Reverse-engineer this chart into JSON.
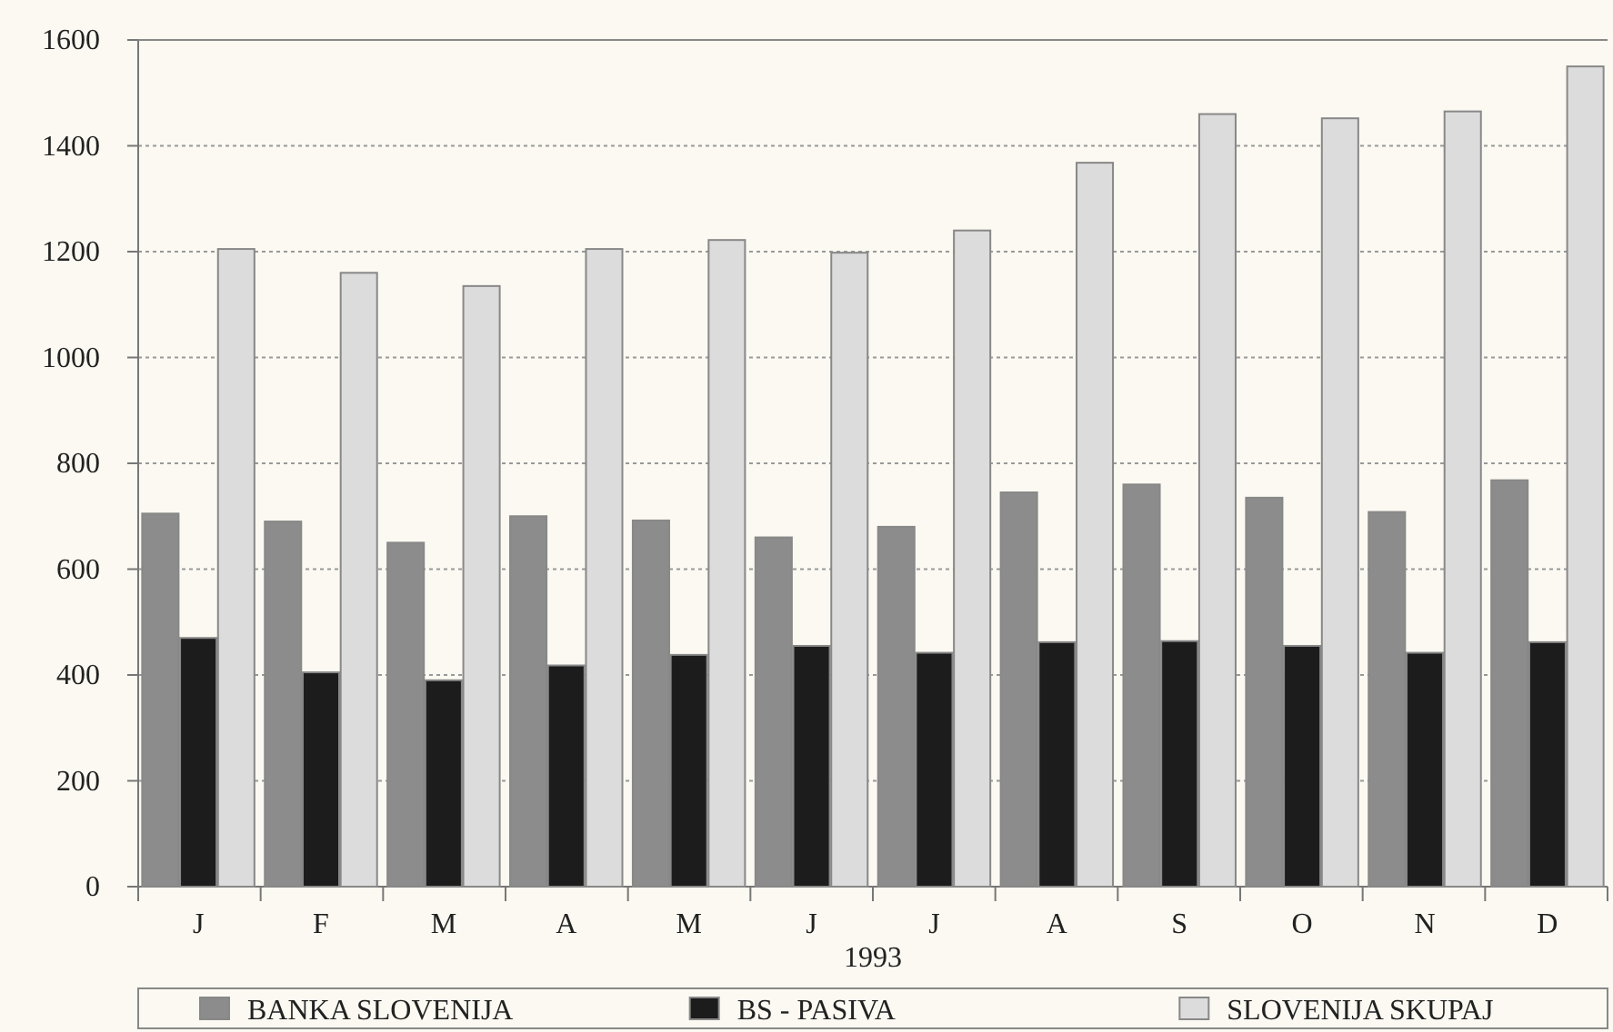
{
  "chart_data": {
    "type": "bar",
    "xlabel": "1993",
    "categories": [
      "J",
      "F",
      "M",
      "A",
      "M",
      "J",
      "J",
      "A",
      "S",
      "O",
      "N",
      "D"
    ],
    "series": [
      {
        "name": "BANKA SLOVENIJA",
        "color": "#8c8c8c",
        "values": [
          705,
          690,
          650,
          700,
          692,
          660,
          680,
          745,
          760,
          735,
          708,
          768
        ]
      },
      {
        "name": "BS - PASIVA",
        "color": "#1c1c1c",
        "values": [
          470,
          405,
          390,
          418,
          438,
          455,
          442,
          462,
          464,
          455,
          442,
          462
        ]
      },
      {
        "name": "SLOVENIJA SKUPAJ",
        "color": "#dcdcdc",
        "values": [
          1205,
          1160,
          1135,
          1205,
          1222,
          1198,
          1240,
          1368,
          1460,
          1452,
          1465,
          1550
        ]
      }
    ],
    "ylim": [
      0,
      1600
    ],
    "yticks": [
      0,
      200,
      400,
      600,
      800,
      1000,
      1200,
      1400,
      1600
    ],
    "grid": "y",
    "legend": "bottom"
  }
}
